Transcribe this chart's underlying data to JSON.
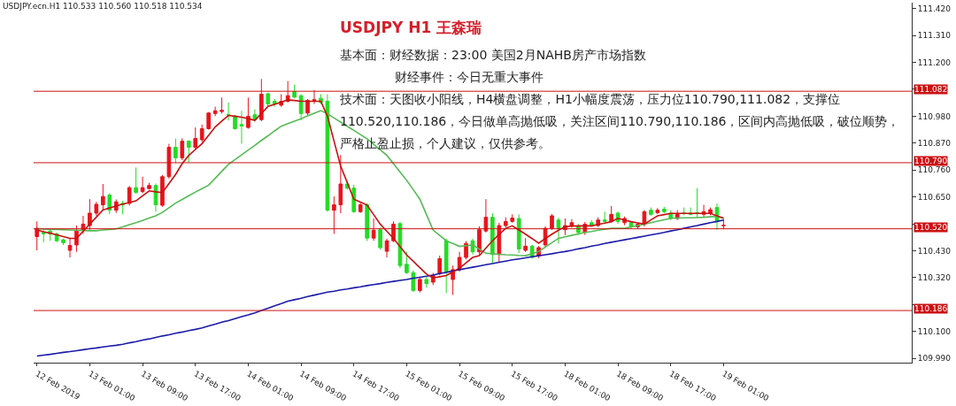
{
  "chart_data": {
    "type": "candlestick",
    "title": "USDJPY H1 王森瑞",
    "annotations": [
      "USDJPY.ecn.H1  110.533 110.560 110.518 110.534",
      "基本面：财经数据：23:00 美国2月NAHB房产市场指数",
      "财经事件：今日无重大事件",
      "技术面：天图收小阳线，H4横盘调整，H1小幅度震荡，压力位110.790,111.082，支撑位110.520,110.186，今日做单高抛低吸，关注区间110.790,110.186，区间内高抛低吸，破位顺势，严格止盈止损，个人建议，仅供参考。"
    ],
    "categories": [
      "12 Feb 2019",
      null,
      null,
      null,
      null,
      null,
      null,
      null,
      "13 Feb 01:00",
      null,
      null,
      null,
      null,
      null,
      null,
      null,
      "13 Feb 09:00",
      null,
      null,
      null,
      null,
      null,
      null,
      null,
      "13 Feb 17:00",
      null,
      null,
      null,
      null,
      null,
      null,
      null,
      "14 Feb 01:00",
      null,
      null,
      null,
      null,
      null,
      null,
      null,
      "14 Feb 09:00",
      null,
      null,
      null,
      null,
      null,
      null,
      null,
      "14 Feb 17:00",
      null,
      null,
      null,
      null,
      null,
      null,
      null,
      "15 Feb 01:00",
      null,
      null,
      null,
      null,
      null,
      null,
      null,
      "15 Feb 09:00",
      null,
      null,
      null,
      null,
      null,
      null,
      null,
      "15 Feb 17:00",
      null,
      null,
      null,
      null,
      null,
      null,
      null,
      "18 Feb 01:00",
      null,
      null,
      null,
      null,
      null,
      null,
      null,
      "18 Feb 09:00",
      null,
      null,
      null,
      null,
      null,
      null,
      null,
      "18 Feb 17:00",
      null,
      null,
      null,
      null,
      null,
      null,
      null,
      "19 Feb 01:00",
      null,
      null,
      null,
      null,
      null,
      null,
      null,
      null,
      null,
      null,
      null,
      null,
      null,
      null,
      null,
      null,
      null,
      null,
      null,
      null,
      null,
      null,
      null,
      null,
      null,
      null,
      null,
      null
    ],
    "ohlc": [
      [
        110.488,
        110.55,
        110.432,
        110.522
      ],
      [
        110.505,
        110.516,
        110.465,
        110.5
      ],
      [
        110.511,
        110.515,
        110.471,
        110.499
      ],
      [
        110.499,
        110.505,
        110.465,
        110.471
      ],
      [
        110.475,
        110.48,
        110.454,
        110.463
      ],
      [
        110.432,
        110.482,
        110.403,
        110.452
      ],
      [
        110.454,
        110.533,
        110.426,
        110.511
      ],
      [
        110.516,
        110.573,
        110.499,
        110.539
      ],
      [
        110.533,
        110.641,
        110.516,
        110.584
      ],
      [
        110.584,
        110.63,
        110.573,
        110.62
      ],
      [
        110.618,
        110.703,
        110.596,
        110.652
      ],
      [
        110.658,
        110.665,
        110.58,
        110.596
      ],
      [
        110.596,
        110.64,
        110.585,
        110.63
      ],
      [
        110.624,
        110.635,
        110.579,
        110.618
      ],
      [
        110.624,
        110.695,
        110.615,
        110.688
      ],
      [
        110.688,
        110.77,
        110.663,
        110.669
      ],
      [
        110.672,
        110.733,
        110.665,
        110.688
      ],
      [
        110.684,
        110.708,
        110.68,
        110.697
      ],
      [
        110.697,
        110.705,
        110.59,
        110.618
      ],
      [
        110.616,
        110.74,
        110.61,
        110.733
      ],
      [
        110.733,
        110.867,
        110.725,
        110.853
      ],
      [
        110.853,
        110.889,
        110.787,
        110.81
      ],
      [
        110.81,
        110.89,
        110.8,
        110.878
      ],
      [
        110.878,
        110.882,
        110.79,
        110.853
      ],
      [
        110.853,
        110.934,
        110.845,
        110.889
      ],
      [
        110.884,
        110.946,
        110.875,
        110.929
      ],
      [
        110.929,
        110.997,
        110.925,
        110.993
      ],
      [
        110.991,
        111.019,
        110.98,
        111.002
      ],
      [
        110.999,
        111.056,
        110.991,
        111.004
      ],
      [
        110.986,
        111.036,
        110.963,
        110.985
      ],
      [
        110.98,
        110.985,
        110.925,
        110.929
      ],
      [
        110.946,
        111.002,
        110.867,
        110.94
      ],
      [
        110.934,
        111.056,
        110.929,
        110.98
      ],
      [
        110.986,
        111.008,
        110.957,
        110.966
      ],
      [
        110.966,
        111.132,
        110.96,
        111.07
      ],
      [
        111.072,
        111.076,
        111.022,
        111.03
      ],
      [
        111.041,
        111.05,
        111.019,
        111.03
      ],
      [
        111.025,
        111.07,
        111.019,
        111.041
      ],
      [
        111.041,
        111.124,
        111.035,
        111.064
      ],
      [
        111.081,
        111.109,
        111.053,
        111.058
      ],
      [
        111.064,
        111.07,
        110.963,
        110.991
      ],
      [
        110.993,
        111.05,
        110.985,
        111.045
      ],
      [
        111.045,
        111.087,
        111.03,
        111.047
      ],
      [
        111.053,
        111.07,
        111.03,
        111.036
      ],
      [
        111.041,
        111.07,
        110.59,
        110.596
      ],
      [
        110.596,
        110.652,
        110.499,
        110.618
      ],
      [
        110.618,
        110.821,
        110.584,
        110.703
      ],
      [
        110.703,
        110.715,
        110.68,
        110.686
      ],
      [
        110.686,
        110.7,
        110.585,
        110.59
      ],
      [
        110.59,
        110.625,
        110.585,
        110.618
      ],
      [
        110.618,
        110.625,
        110.47,
        110.482
      ],
      [
        110.482,
        110.562,
        110.471,
        110.514
      ],
      [
        110.516,
        110.525,
        110.435,
        110.443
      ],
      [
        110.428,
        110.48,
        110.403,
        110.471
      ],
      [
        110.471,
        110.55,
        110.465,
        110.539
      ],
      [
        110.541,
        110.548,
        110.36,
        110.37
      ],
      [
        110.375,
        110.426,
        110.335,
        110.341
      ],
      [
        110.341,
        110.35,
        110.262,
        110.268
      ],
      [
        110.268,
        110.32,
        110.26,
        110.313
      ],
      [
        110.313,
        110.324,
        110.279,
        110.296
      ],
      [
        110.302,
        110.34,
        110.29,
        110.33
      ],
      [
        110.336,
        110.41,
        110.33,
        110.398
      ],
      [
        110.471,
        110.48,
        110.257,
        110.347
      ],
      [
        110.313,
        110.37,
        110.25,
        110.353
      ],
      [
        110.353,
        110.426,
        110.345,
        110.403
      ],
      [
        110.403,
        110.47,
        110.395,
        110.46
      ],
      [
        110.471,
        110.48,
        110.415,
        110.426
      ],
      [
        110.426,
        110.53,
        110.415,
        110.516
      ],
      [
        110.511,
        110.641,
        110.505,
        110.567
      ],
      [
        110.567,
        110.584,
        110.381,
        110.415
      ],
      [
        110.415,
        110.545,
        110.381,
        110.533
      ],
      [
        110.533,
        110.567,
        110.525,
        110.55
      ],
      [
        110.55,
        110.579,
        110.545,
        110.564
      ],
      [
        110.562,
        110.579,
        110.42,
        110.437
      ],
      [
        110.432,
        110.482,
        110.425,
        110.449
      ],
      [
        110.449,
        110.455,
        110.398,
        110.403
      ],
      [
        110.409,
        110.45,
        110.4,
        110.443
      ],
      [
        110.454,
        110.53,
        110.445,
        110.522
      ],
      [
        110.522,
        110.58,
        110.515,
        110.573
      ],
      [
        110.556,
        110.565,
        110.46,
        110.522
      ],
      [
        110.516,
        110.562,
        110.494,
        110.533
      ],
      [
        110.533,
        110.56,
        110.525,
        110.545
      ],
      [
        110.53,
        110.54,
        110.495,
        110.505
      ],
      [
        110.505,
        110.548,
        110.495,
        110.539
      ],
      [
        110.545,
        110.556,
        110.528,
        110.533
      ],
      [
        110.533,
        110.567,
        110.528,
        110.556
      ],
      [
        110.556,
        110.59,
        110.545,
        110.55
      ],
      [
        110.55,
        110.613,
        110.545,
        110.579
      ],
      [
        110.584,
        110.59,
        110.54,
        110.55
      ],
      [
        110.545,
        110.57,
        110.535,
        110.562
      ],
      [
        110.545,
        110.55,
        110.52,
        110.528
      ],
      [
        110.528,
        110.545,
        110.52,
        110.539
      ],
      [
        110.539,
        110.596,
        110.53,
        110.59
      ],
      [
        110.596,
        110.607,
        110.573,
        110.579
      ],
      [
        110.586,
        110.605,
        110.58,
        110.596
      ],
      [
        110.6,
        110.61,
        110.584,
        110.59
      ],
      [
        110.584,
        110.596,
        110.556,
        110.562
      ],
      [
        110.562,
        110.596,
        110.556,
        110.579
      ],
      [
        110.584,
        110.607,
        110.575,
        110.584
      ],
      [
        110.584,
        110.607,
        110.575,
        110.579
      ],
      [
        110.586,
        110.686,
        110.567,
        110.582
      ],
      [
        110.579,
        110.618,
        110.567,
        110.59
      ],
      [
        110.584,
        110.607,
        110.575,
        110.598
      ],
      [
        110.607,
        110.624,
        110.516,
        110.55
      ],
      [
        110.533,
        110.56,
        110.518,
        110.534
      ],
      null,
      null,
      null,
      null,
      null,
      null,
      null,
      null,
      null,
      null,
      null,
      null,
      null,
      null,
      null,
      null,
      null,
      null,
      null,
      null,
      null,
      null,
      null,
      null,
      null,
      null,
      null,
      null
    ],
    "colors": [
      "#e8141b",
      "#22dd22",
      "#22dd22",
      "#22dd22",
      "#22dd22",
      "#e8141b",
      "#e8141b",
      "#e8141b",
      "#e8141b",
      "#e8141b",
      "#e8141b",
      "#22dd22",
      "#e8141b",
      "#22dd22",
      "#e8141b",
      "#22dd22",
      "#e8141b",
      "#e8141b",
      "#22dd22",
      "#e8141b",
      "#e8141b",
      "#22dd22",
      "#e8141b",
      "#22dd22",
      "#e8141b",
      "#e8141b",
      "#e8141b",
      "#e8141b",
      "#e8141b",
      "#22dd22",
      "#22dd22",
      "#22dd22",
      "#e8141b",
      "#22dd22",
      "#e8141b",
      "#22dd22",
      "#22dd22",
      "#e8141b",
      "#e8141b",
      "#22dd22",
      "#22dd22",
      "#e8141b",
      "#e8141b",
      "#22dd22",
      "#22dd22",
      "#e8141b",
      "#e8141b",
      "#22dd22",
      "#22dd22",
      "#e8141b",
      "#22dd22",
      "#e8141b",
      "#22dd22",
      "#e8141b",
      "#e8141b",
      "#22dd22",
      "#22dd22",
      "#22dd22",
      "#e8141b",
      "#22dd22",
      "#e8141b",
      "#e8141b",
      "#22dd22",
      "#e8141b",
      "#e8141b",
      "#e8141b",
      "#22dd22",
      "#e8141b",
      "#e8141b",
      "#22dd22",
      "#e8141b",
      "#e8141b",
      "#e8141b",
      "#22dd22",
      "#e8141b",
      "#22dd22",
      "#e8141b",
      "#e8141b",
      "#e8141b",
      "#22dd22",
      "#e8141b",
      "#e8141b",
      "#22dd22",
      "#e8141b",
      "#22dd22",
      "#e8141b",
      "#22dd22",
      "#e8141b",
      "#22dd22",
      "#e8141b",
      "#22dd22",
      "#e8141b",
      "#e8141b",
      "#22dd22",
      "#e8141b",
      "#22dd22",
      "#22dd22",
      "#e8141b",
      "#22dd22",
      "#22dd22",
      "#22dd22",
      "#e8141b",
      "#e8141b",
      "#22dd22",
      "#e8141b",
      null,
      null,
      null,
      null,
      null,
      null,
      null,
      null,
      null,
      null,
      null,
      null,
      null,
      null,
      null,
      null,
      null,
      null,
      null,
      null,
      null,
      null,
      null,
      null,
      null,
      null,
      null,
      null
    ],
    "series": [
      {
        "type": "line",
        "color": "#1a1aa8",
        "values": [
          110.0,
          110.004,
          110.007,
          110.011,
          110.015,
          110.018,
          110.022,
          110.026,
          110.03,
          110.033,
          110.037,
          110.041,
          110.044,
          110.048,
          110.054,
          110.059,
          110.065,
          110.07,
          110.076,
          110.082,
          110.087,
          110.093,
          110.098,
          110.104,
          110.109,
          110.115,
          110.123,
          110.13,
          110.138,
          110.145,
          110.153,
          110.161,
          110.168,
          110.176,
          110.186,
          110.195,
          110.205,
          110.214,
          110.224,
          110.23,
          110.236,
          110.243,
          110.249,
          110.255,
          110.261,
          110.265,
          110.27,
          110.274,
          110.279,
          110.283,
          110.288,
          110.292,
          110.296,
          110.301,
          110.305,
          110.309,
          110.313,
          110.318,
          110.322,
          110.326,
          110.331,
          110.337,
          110.342,
          110.348,
          110.353,
          110.358,
          110.363,
          110.368,
          110.373,
          110.378,
          110.383,
          110.388,
          110.393,
          110.397,
          110.401,
          110.406,
          110.41,
          110.414,
          110.418,
          110.423,
          110.427,
          110.432,
          110.438,
          110.443,
          110.449,
          110.454,
          110.46,
          110.465,
          110.47,
          110.475,
          110.48,
          110.485,
          110.49,
          110.495,
          110.5,
          110.505,
          110.511,
          110.516,
          110.522,
          110.528,
          110.533,
          110.539,
          110.545,
          110.55,
          110.556,
          null,
          null,
          null,
          null,
          null,
          null,
          null,
          null,
          null,
          null,
          null,
          null,
          null,
          null,
          null,
          null,
          null,
          null,
          null,
          null,
          null,
          null,
          null,
          null,
          null,
          null,
          null,
          null
        ]
      },
      {
        "type": "line",
        "color": "#55bb55",
        "values": [
          110.52,
          110.519,
          110.518,
          110.517,
          110.516,
          110.515,
          110.514,
          110.513,
          110.512,
          110.512,
          110.515,
          110.517,
          110.52,
          110.528,
          110.537,
          110.545,
          110.554,
          110.564,
          110.573,
          110.587,
          110.606,
          110.625,
          110.64,
          110.655,
          110.67,
          110.684,
          110.698,
          110.726,
          110.755,
          110.783,
          110.803,
          110.822,
          110.842,
          110.861,
          110.881,
          110.9,
          110.92,
          110.939,
          110.95,
          110.96,
          110.97,
          110.981,
          110.992,
          111.003,
          110.99,
          110.973,
          110.956,
          110.939,
          110.922,
          110.905,
          110.888,
          110.865,
          110.843,
          110.82,
          110.786,
          110.752,
          110.718,
          110.68,
          110.641,
          110.578,
          110.515,
          110.493,
          110.471,
          110.46,
          110.448,
          110.451,
          110.454,
          110.437,
          110.42,
          110.418,
          110.416,
          110.414,
          110.413,
          110.411,
          110.41,
          110.418,
          110.427,
          110.445,
          110.463,
          110.481,
          110.487,
          110.493,
          110.499,
          110.505,
          110.509,
          110.514,
          110.518,
          110.522,
          110.522,
          110.522,
          110.528,
          110.533,
          110.539,
          110.545,
          110.551,
          110.557,
          110.563,
          110.564,
          110.565,
          110.565,
          110.566,
          110.567,
          110.569,
          110.57,
          110.565,
          null,
          null,
          null,
          null,
          null,
          null,
          null,
          null,
          null,
          null,
          null,
          null,
          null,
          null,
          null,
          null,
          null,
          null,
          null,
          null,
          null,
          null,
          null,
          null,
          null,
          null,
          null,
          null
        ]
      },
      {
        "type": "line",
        "color": "#c81010",
        "values": [
          110.515,
          110.508,
          110.502,
          110.495,
          110.488,
          110.481,
          110.481,
          110.51,
          110.539,
          110.568,
          110.597,
          110.605,
          110.614,
          110.621,
          110.627,
          110.634,
          110.655,
          110.675,
          110.671,
          110.668,
          110.705,
          110.742,
          110.786,
          110.82,
          110.844,
          110.868,
          110.902,
          110.936,
          110.96,
          110.983,
          110.98,
          110.976,
          110.97,
          110.963,
          110.991,
          111.02,
          111.028,
          111.037,
          111.047,
          111.044,
          111.041,
          111.041,
          111.041,
          111.041,
          110.98,
          110.878,
          110.776,
          110.709,
          110.641,
          110.629,
          110.617,
          110.578,
          110.539,
          110.51,
          110.481,
          110.447,
          110.413,
          110.387,
          110.361,
          110.335,
          110.319,
          110.324,
          110.329,
          110.344,
          110.359,
          110.381,
          110.403,
          110.41,
          110.441,
          110.471,
          110.497,
          110.522,
          110.532,
          110.515,
          110.498,
          110.48,
          110.461,
          110.48,
          110.498,
          110.514,
          110.529,
          110.531,
          110.532,
          110.532,
          110.532,
          110.538,
          110.543,
          110.549,
          110.563,
          110.556,
          110.549,
          110.544,
          110.539,
          110.556,
          110.573,
          110.578,
          110.583,
          110.583,
          110.583,
          110.583,
          110.583,
          110.583,
          110.583,
          110.573,
          110.563,
          null,
          null,
          null,
          null,
          null,
          null,
          null,
          null,
          null,
          null,
          null,
          null,
          null,
          null,
          null,
          null,
          null,
          null,
          null,
          null,
          null,
          null,
          null,
          null,
          null,
          null,
          null,
          null
        ]
      }
    ],
    "ylim": [
      109.973,
      111.444
    ],
    "yticks": [
      {
        "value": 109.99,
        "label": "109.990"
      },
      {
        "value": 110.1,
        "label": "110.100"
      },
      {
        "value": 110.21,
        "label": null
      },
      {
        "value": 110.32,
        "label": "110.320"
      },
      {
        "value": 110.43,
        "label": "110.430"
      },
      {
        "value": 110.54,
        "label": null
      },
      {
        "value": 110.65,
        "label": "110.650"
      },
      {
        "value": 110.76,
        "label": "110.760"
      },
      {
        "value": 110.87,
        "label": "110.870"
      },
      {
        "value": 110.98,
        "label": "110.980"
      },
      {
        "value": 111.09,
        "label": null
      },
      {
        "value": 111.2,
        "label": "111.200"
      },
      {
        "value": 111.31,
        "label": "111.310"
      },
      {
        "value": 111.42,
        "label": "111.420"
      }
    ],
    "ref_lines": [
      {
        "axis": "y",
        "value": 111.082,
        "label": "111.082",
        "color": "#cc1111"
      },
      {
        "axis": "y",
        "value": 110.79,
        "label": "110.790",
        "color": "#cc1111"
      },
      {
        "axis": "y",
        "value": 110.52,
        "label": "110.520",
        "color": "#cc1111"
      },
      {
        "axis": "y",
        "value": 110.186,
        "label": "110.186",
        "color": "#cc1111"
      }
    ]
  }
}
